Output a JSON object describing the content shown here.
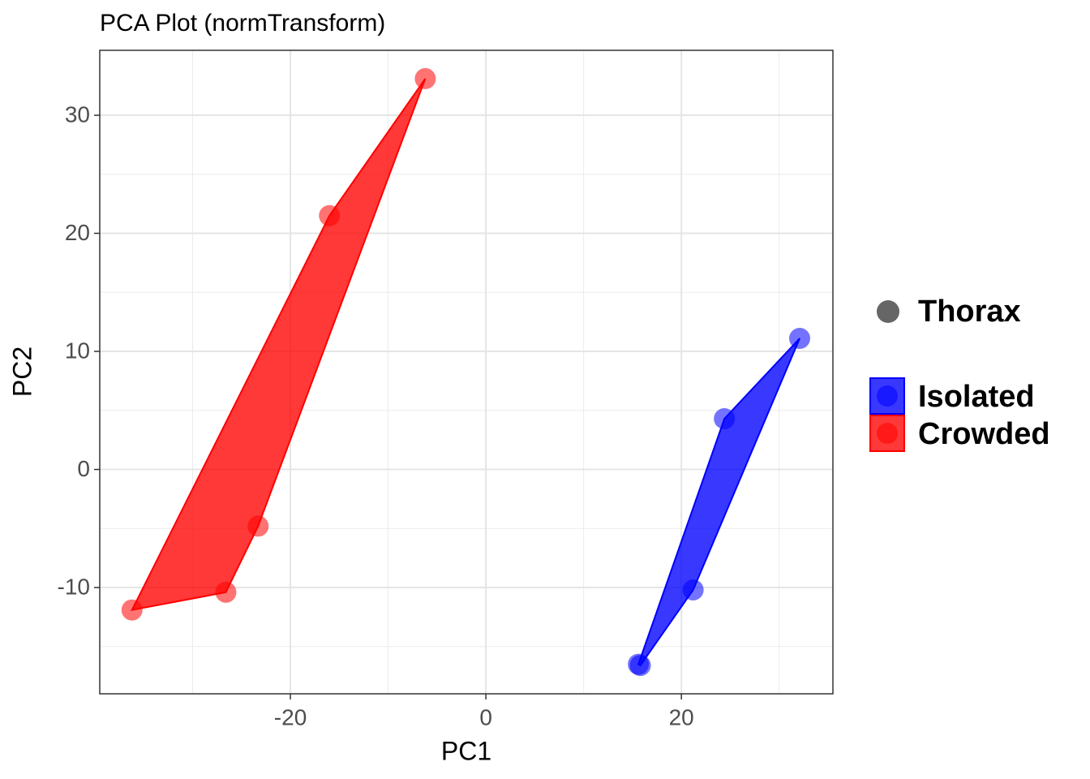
{
  "chart_data": {
    "type": "scatter",
    "title": "PCA Plot (normTransform)",
    "x_label": "PC1",
    "y_label": "PC2",
    "xlim": [
      -39.5,
      35.5
    ],
    "ylim": [
      -19.0,
      35.5
    ],
    "xticks": [
      -20,
      0,
      20
    ],
    "yticks": [
      -10,
      0,
      10,
      20,
      30
    ],
    "x_minor_grid": [
      -30,
      -10,
      10,
      30
    ],
    "y_minor_grid": [
      -15,
      -5,
      5,
      15,
      25
    ],
    "grid": true,
    "hull": true,
    "shape_legend": "Thorax",
    "series": [
      {
        "name": "Isolated",
        "color": "#0000ff",
        "x": [
          15.6,
          15.8,
          21.2,
          24.4,
          32.1
        ],
        "values": [
          -16.5,
          -16.6,
          -10.2,
          4.3,
          11.1
        ]
      },
      {
        "name": "Crowded",
        "color": "#ff0000",
        "x": [
          -36.2,
          -26.6,
          -23.3,
          -16.0,
          -6.2
        ],
        "values": [
          -11.9,
          -10.4,
          -4.8,
          21.5,
          33.1
        ]
      }
    ]
  }
}
